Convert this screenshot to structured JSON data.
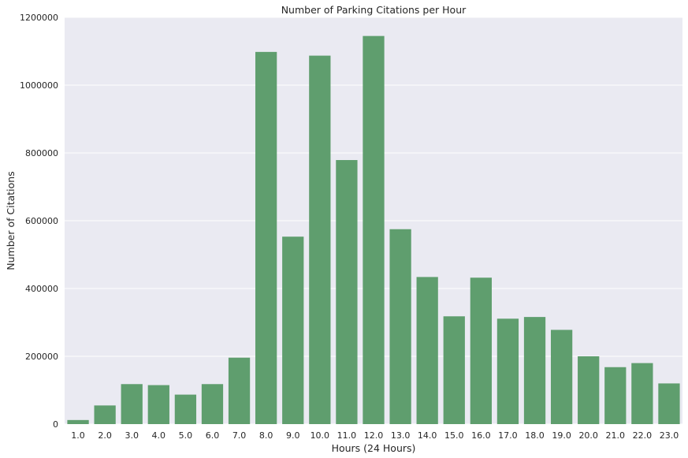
{
  "chart_data": {
    "type": "bar",
    "title": "Number of Parking Citations per Hour",
    "xlabel": "Hours (24 Hours)",
    "ylabel": "Number of Citations",
    "categories": [
      "1.0",
      "2.0",
      "3.0",
      "4.0",
      "5.0",
      "6.0",
      "7.0",
      "8.0",
      "9.0",
      "10.0",
      "11.0",
      "12.0",
      "13.0",
      "14.0",
      "15.0",
      "16.0",
      "17.0",
      "18.0",
      "19.0",
      "20.0",
      "21.0",
      "22.0",
      "23.0"
    ],
    "values": [
      12000,
      55000,
      118000,
      115000,
      87000,
      118000,
      196000,
      1098000,
      553000,
      1087000,
      779000,
      1145000,
      575000,
      434000,
      318000,
      432000,
      311000,
      316000,
      278000,
      200000,
      168000,
      180000,
      120000
    ],
    "ylim": [
      0,
      1200000
    ],
    "yticks": [
      0,
      200000,
      400000,
      600000,
      800000,
      1000000,
      1200000
    ],
    "ytick_labels": [
      "0",
      "200000",
      "400000",
      "600000",
      "800000",
      "1000000",
      "1200000"
    ],
    "grid": true,
    "colors": {
      "bar": "#5f9e6e",
      "background": "#eaeaf2",
      "grid": "#ffffff"
    }
  }
}
